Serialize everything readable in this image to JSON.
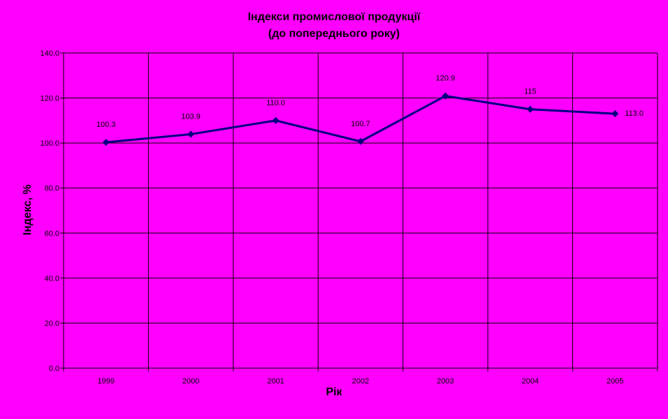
{
  "chart_data": {
    "type": "line",
    "title": "Індекси промислової продукції",
    "subtitle": "(до попереднього року)",
    "xlabel": "Рік",
    "ylabel": "Індекс, %",
    "categories": [
      "1999",
      "2000",
      "2001",
      "2002",
      "2003",
      "2004",
      "2005"
    ],
    "series": [
      {
        "values": [
          100.3,
          103.9,
          110.0,
          100.7,
          120.9,
          115,
          113.0
        ],
        "data_labels": [
          "100.3",
          "103.9",
          "110.0",
          "100.7",
          "120.9",
          "115",
          "113.0"
        ]
      }
    ],
    "ylim": [
      0,
      140
    ],
    "yticks": [
      0,
      20,
      40,
      60,
      80,
      100,
      120,
      140
    ],
    "ytick_labels": [
      "0.0",
      "20.0",
      "40.0",
      "60.0",
      "80.0",
      "100.0",
      "120.0",
      "140.0"
    ],
    "grid": true,
    "legend": "none",
    "colors": {
      "background": "#ff00ff",
      "line": "#000080",
      "grid": "#000000"
    }
  }
}
